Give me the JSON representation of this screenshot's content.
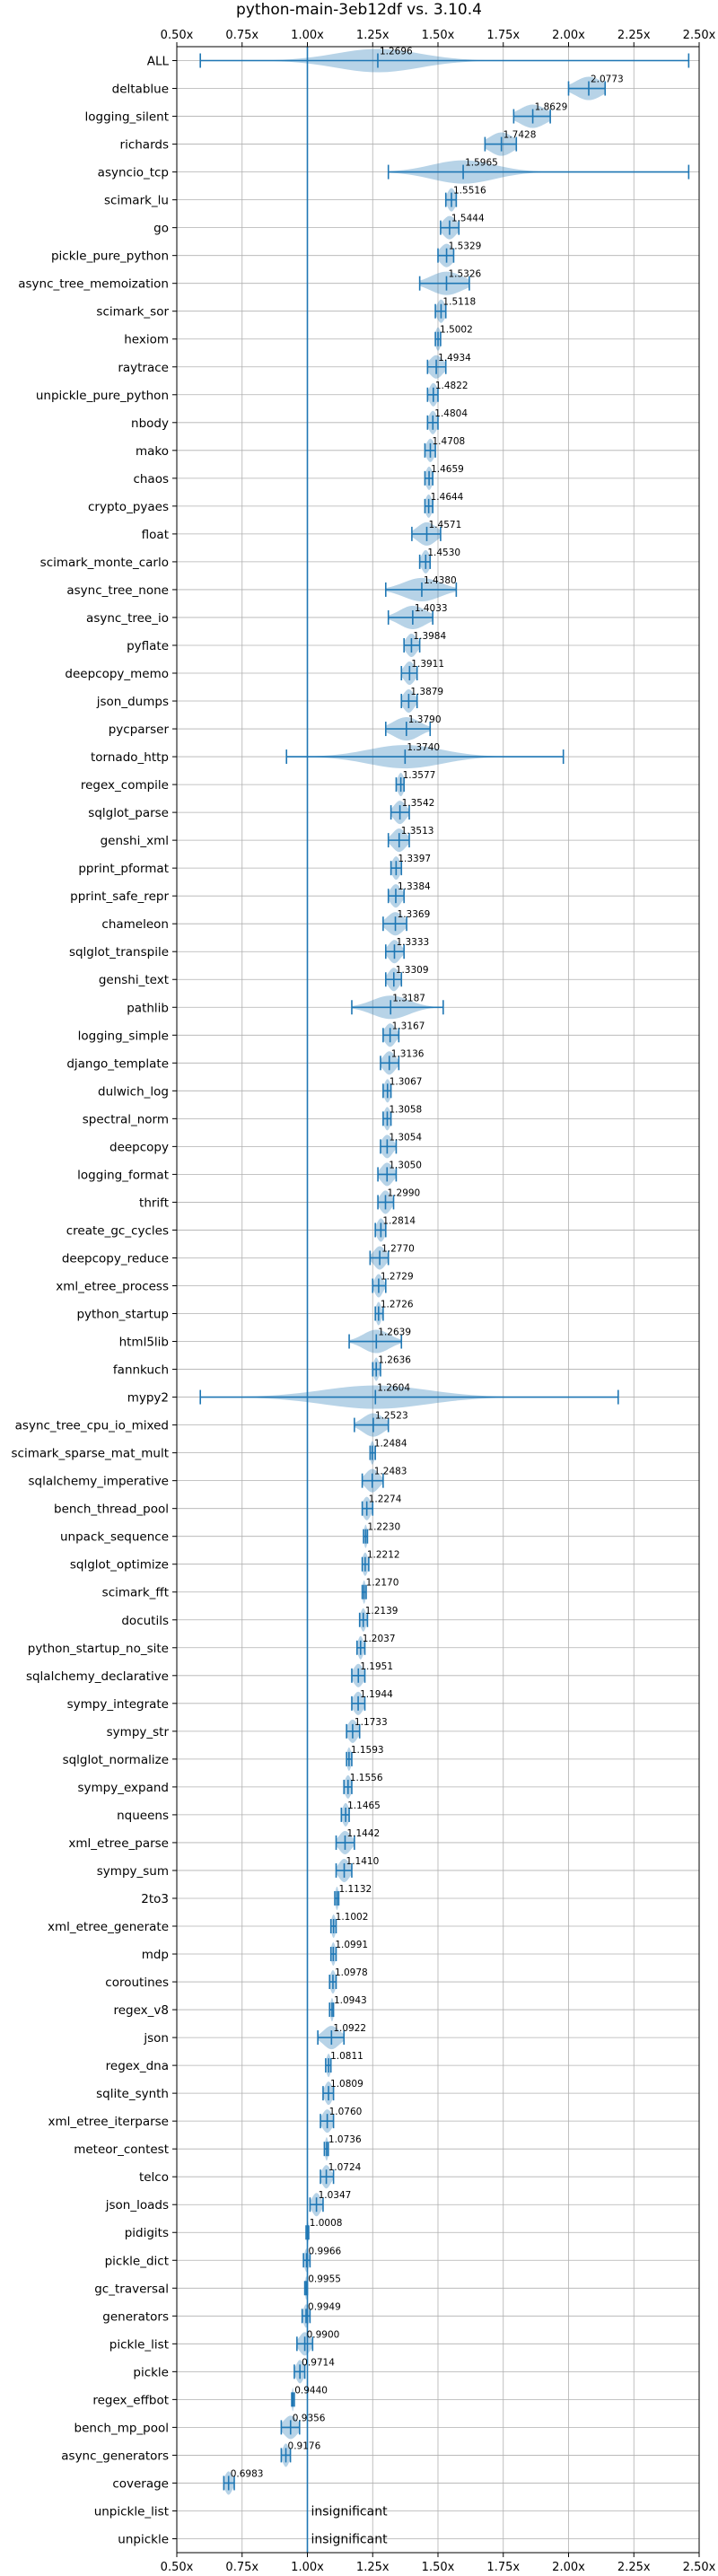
{
  "chart_data": {
    "type": "violin",
    "title": "python-main-3eb12df vs. 3.10.4",
    "xlim": [
      0.5,
      2.5
    ],
    "xticks": [
      0.5,
      0.75,
      1.0,
      1.25,
      1.5,
      1.75,
      2.0,
      2.25,
      2.5
    ],
    "xtick_labels": [
      "0.50x",
      "0.75x",
      "1.00x",
      "1.25x",
      "1.50x",
      "1.75x",
      "2.00x",
      "2.25x",
      "2.50x"
    ],
    "tick_position": "top-and-bottom",
    "grid": true,
    "reference_line": 1.0,
    "colors": {
      "series": "#1f77b4",
      "grid": "#b0b0b0"
    },
    "insignificant_label": "insignificant",
    "benchmarks": [
      {
        "name": "ALL",
        "value": 1.2696,
        "value_label": "1.2696",
        "min": 0.59,
        "max": 2.46,
        "spread": 0.16
      },
      {
        "name": "deltablue",
        "value": 2.0773,
        "value_label": "2.0773",
        "min": 2.0,
        "max": 2.14,
        "spread": 0.05
      },
      {
        "name": "logging_silent",
        "value": 1.8629,
        "value_label": "1.8629",
        "min": 1.79,
        "max": 1.93,
        "spread": 0.05
      },
      {
        "name": "richards",
        "value": 1.7428,
        "value_label": "1.7428",
        "min": 1.68,
        "max": 1.8,
        "spread": 0.045
      },
      {
        "name": "asyncio_tcp",
        "value": 1.5965,
        "value_label": "1.5965",
        "min": 1.31,
        "max": 2.46,
        "spread": 0.12
      },
      {
        "name": "scimark_lu",
        "value": 1.5516,
        "value_label": "1.5516",
        "min": 1.53,
        "max": 1.57,
        "spread": 0.015
      },
      {
        "name": "go",
        "value": 1.5444,
        "value_label": "1.5444",
        "min": 1.51,
        "max": 1.58,
        "spread": 0.025
      },
      {
        "name": "pickle_pure_python",
        "value": 1.5329,
        "value_label": "1.5329",
        "min": 1.5,
        "max": 1.56,
        "spread": 0.025
      },
      {
        "name": "async_tree_memoization",
        "value": 1.5326,
        "value_label": "1.5326",
        "min": 1.43,
        "max": 1.62,
        "spread": 0.06
      },
      {
        "name": "scimark_sor",
        "value": 1.5118,
        "value_label": "1.5118",
        "min": 1.49,
        "max": 1.53,
        "spread": 0.015
      },
      {
        "name": "hexiom",
        "value": 1.5002,
        "value_label": "1.5002",
        "min": 1.49,
        "max": 1.51,
        "spread": 0.01
      },
      {
        "name": "raytrace",
        "value": 1.4934,
        "value_label": "1.4934",
        "min": 1.46,
        "max": 1.53,
        "spread": 0.025
      },
      {
        "name": "unpickle_pure_python",
        "value": 1.4822,
        "value_label": "1.4822",
        "min": 1.46,
        "max": 1.5,
        "spread": 0.015
      },
      {
        "name": "nbody",
        "value": 1.4804,
        "value_label": "1.4804",
        "min": 1.46,
        "max": 1.5,
        "spread": 0.015
      },
      {
        "name": "mako",
        "value": 1.4708,
        "value_label": "1.4708",
        "min": 1.45,
        "max": 1.49,
        "spread": 0.015
      },
      {
        "name": "chaos",
        "value": 1.4659,
        "value_label": "1.4659",
        "min": 1.45,
        "max": 1.48,
        "spread": 0.012
      },
      {
        "name": "crypto_pyaes",
        "value": 1.4644,
        "value_label": "1.4644",
        "min": 1.45,
        "max": 1.48,
        "spread": 0.012
      },
      {
        "name": "float",
        "value": 1.4571,
        "value_label": "1.4571",
        "min": 1.4,
        "max": 1.51,
        "spread": 0.035
      },
      {
        "name": "scimark_monte_carlo",
        "value": 1.453,
        "value_label": "1.4530",
        "min": 1.43,
        "max": 1.47,
        "spread": 0.015
      },
      {
        "name": "async_tree_none",
        "value": 1.438,
        "value_label": "1.4380",
        "min": 1.3,
        "max": 1.57,
        "spread": 0.07
      },
      {
        "name": "async_tree_io",
        "value": 1.4033,
        "value_label": "1.4033",
        "min": 1.31,
        "max": 1.48,
        "spread": 0.05
      },
      {
        "name": "pyflate",
        "value": 1.3984,
        "value_label": "1.3984",
        "min": 1.37,
        "max": 1.43,
        "spread": 0.02
      },
      {
        "name": "deepcopy_memo",
        "value": 1.3911,
        "value_label": "1.3911",
        "min": 1.36,
        "max": 1.42,
        "spread": 0.02
      },
      {
        "name": "json_dumps",
        "value": 1.3879,
        "value_label": "1.3879",
        "min": 1.36,
        "max": 1.42,
        "spread": 0.02
      },
      {
        "name": "pycparser",
        "value": 1.379,
        "value_label": "1.3790",
        "min": 1.3,
        "max": 1.47,
        "spread": 0.05
      },
      {
        "name": "tornado_http",
        "value": 1.374,
        "value_label": "1.3740",
        "min": 0.92,
        "max": 1.98,
        "spread": 0.14
      },
      {
        "name": "regex_compile",
        "value": 1.3577,
        "value_label": "1.3577",
        "min": 1.34,
        "max": 1.37,
        "spread": 0.012
      },
      {
        "name": "sqlglot_parse",
        "value": 1.3542,
        "value_label": "1.3542",
        "min": 1.32,
        "max": 1.39,
        "spread": 0.022
      },
      {
        "name": "genshi_xml",
        "value": 1.3513,
        "value_label": "1.3513",
        "min": 1.31,
        "max": 1.39,
        "spread": 0.025
      },
      {
        "name": "pprint_pformat",
        "value": 1.3397,
        "value_label": "1.3397",
        "min": 1.32,
        "max": 1.36,
        "spread": 0.015
      },
      {
        "name": "pprint_safe_repr",
        "value": 1.3384,
        "value_label": "1.3384",
        "min": 1.31,
        "max": 1.37,
        "spread": 0.02
      },
      {
        "name": "chameleon",
        "value": 1.3369,
        "value_label": "1.3369",
        "min": 1.29,
        "max": 1.38,
        "spread": 0.03
      },
      {
        "name": "sqlglot_transpile",
        "value": 1.3333,
        "value_label": "1.3333",
        "min": 1.3,
        "max": 1.37,
        "spread": 0.022
      },
      {
        "name": "genshi_text",
        "value": 1.3309,
        "value_label": "1.3309",
        "min": 1.3,
        "max": 1.36,
        "spread": 0.02
      },
      {
        "name": "pathlib",
        "value": 1.3187,
        "value_label": "1.3187",
        "min": 1.17,
        "max": 1.52,
        "spread": 0.07
      },
      {
        "name": "logging_simple",
        "value": 1.3167,
        "value_label": "1.3167",
        "min": 1.29,
        "max": 1.35,
        "spread": 0.02
      },
      {
        "name": "django_template",
        "value": 1.3136,
        "value_label": "1.3136",
        "min": 1.28,
        "max": 1.35,
        "spread": 0.022
      },
      {
        "name": "dulwich_log",
        "value": 1.3067,
        "value_label": "1.3067",
        "min": 1.29,
        "max": 1.32,
        "spread": 0.012
      },
      {
        "name": "spectral_norm",
        "value": 1.3058,
        "value_label": "1.3058",
        "min": 1.29,
        "max": 1.32,
        "spread": 0.012
      },
      {
        "name": "deepcopy",
        "value": 1.3054,
        "value_label": "1.3054",
        "min": 1.28,
        "max": 1.34,
        "spread": 0.02
      },
      {
        "name": "logging_format",
        "value": 1.305,
        "value_label": "1.3050",
        "min": 1.27,
        "max": 1.34,
        "spread": 0.022
      },
      {
        "name": "thrift",
        "value": 1.299,
        "value_label": "1.2990",
        "min": 1.27,
        "max": 1.33,
        "spread": 0.02
      },
      {
        "name": "create_gc_cycles",
        "value": 1.2814,
        "value_label": "1.2814",
        "min": 1.26,
        "max": 1.3,
        "spread": 0.015
      },
      {
        "name": "deepcopy_reduce",
        "value": 1.277,
        "value_label": "1.2770",
        "min": 1.24,
        "max": 1.31,
        "spread": 0.022
      },
      {
        "name": "xml_etree_process",
        "value": 1.2729,
        "value_label": "1.2729",
        "min": 1.25,
        "max": 1.3,
        "spread": 0.015
      },
      {
        "name": "python_startup",
        "value": 1.2726,
        "value_label": "1.2726",
        "min": 1.26,
        "max": 1.29,
        "spread": 0.01
      },
      {
        "name": "html5lib",
        "value": 1.2639,
        "value_label": "1.2639",
        "min": 1.16,
        "max": 1.36,
        "spread": 0.05
      },
      {
        "name": "fannkuch",
        "value": 1.2636,
        "value_label": "1.2636",
        "min": 1.25,
        "max": 1.28,
        "spread": 0.01
      },
      {
        "name": "mypy2",
        "value": 1.2604,
        "value_label": "1.2604",
        "min": 0.59,
        "max": 2.19,
        "spread": 0.2
      },
      {
        "name": "async_tree_cpu_io_mixed",
        "value": 1.2523,
        "value_label": "1.2523",
        "min": 1.18,
        "max": 1.31,
        "spread": 0.04
      },
      {
        "name": "scimark_sparse_mat_mult",
        "value": 1.2484,
        "value_label": "1.2484",
        "min": 1.24,
        "max": 1.26,
        "spread": 0.008
      },
      {
        "name": "sqlalchemy_imperative",
        "value": 1.2483,
        "value_label": "1.2483",
        "min": 1.21,
        "max": 1.29,
        "spread": 0.025
      },
      {
        "name": "bench_thread_pool",
        "value": 1.2274,
        "value_label": "1.2274",
        "min": 1.21,
        "max": 1.25,
        "spread": 0.015
      },
      {
        "name": "unpack_sequence",
        "value": 1.223,
        "value_label": "1.2230",
        "min": 1.215,
        "max": 1.23,
        "spread": 0.006
      },
      {
        "name": "sqlglot_optimize",
        "value": 1.2212,
        "value_label": "1.2212",
        "min": 1.21,
        "max": 1.235,
        "spread": 0.01
      },
      {
        "name": "scimark_fft",
        "value": 1.217,
        "value_label": "1.2170",
        "min": 1.21,
        "max": 1.225,
        "spread": 0.006
      },
      {
        "name": "docutils",
        "value": 1.2139,
        "value_label": "1.2139",
        "min": 1.2,
        "max": 1.23,
        "spread": 0.01
      },
      {
        "name": "python_startup_no_site",
        "value": 1.2037,
        "value_label": "1.2037",
        "min": 1.19,
        "max": 1.22,
        "spread": 0.01
      },
      {
        "name": "sqlalchemy_declarative",
        "value": 1.1951,
        "value_label": "1.1951",
        "min": 1.17,
        "max": 1.22,
        "spread": 0.018
      },
      {
        "name": "sympy_integrate",
        "value": 1.1944,
        "value_label": "1.1944",
        "min": 1.17,
        "max": 1.22,
        "spread": 0.018
      },
      {
        "name": "sympy_str",
        "value": 1.1733,
        "value_label": "1.1733",
        "min": 1.15,
        "max": 1.2,
        "spread": 0.018
      },
      {
        "name": "sqlglot_normalize",
        "value": 1.1593,
        "value_label": "1.1593",
        "min": 1.15,
        "max": 1.17,
        "spread": 0.008
      },
      {
        "name": "sympy_expand",
        "value": 1.1556,
        "value_label": "1.1556",
        "min": 1.14,
        "max": 1.17,
        "spread": 0.012
      },
      {
        "name": "nqueens",
        "value": 1.1465,
        "value_label": "1.1465",
        "min": 1.13,
        "max": 1.16,
        "spread": 0.012
      },
      {
        "name": "xml_etree_parse",
        "value": 1.1442,
        "value_label": "1.1442",
        "min": 1.11,
        "max": 1.18,
        "spread": 0.022
      },
      {
        "name": "sympy_sum",
        "value": 1.141,
        "value_label": "1.1410",
        "min": 1.11,
        "max": 1.17,
        "spread": 0.02
      },
      {
        "name": "2to3",
        "value": 1.1132,
        "value_label": "1.1132",
        "min": 1.105,
        "max": 1.12,
        "spread": 0.006
      },
      {
        "name": "xml_etree_generate",
        "value": 1.1002,
        "value_label": "1.1002",
        "min": 1.09,
        "max": 1.11,
        "spread": 0.008
      },
      {
        "name": "mdp",
        "value": 1.0991,
        "value_label": "1.0991",
        "min": 1.09,
        "max": 1.11,
        "spread": 0.008
      },
      {
        "name": "coroutines",
        "value": 1.0978,
        "value_label": "1.0978",
        "min": 1.085,
        "max": 1.11,
        "spread": 0.01
      },
      {
        "name": "regex_v8",
        "value": 1.0943,
        "value_label": "1.0943",
        "min": 1.085,
        "max": 1.1,
        "spread": 0.006
      },
      {
        "name": "json",
        "value": 1.0922,
        "value_label": "1.0922",
        "min": 1.04,
        "max": 1.14,
        "spread": 0.03
      },
      {
        "name": "regex_dna",
        "value": 1.0811,
        "value_label": "1.0811",
        "min": 1.07,
        "max": 1.09,
        "spread": 0.008
      },
      {
        "name": "sqlite_synth",
        "value": 1.0809,
        "value_label": "1.0809",
        "min": 1.06,
        "max": 1.1,
        "spread": 0.014
      },
      {
        "name": "xml_etree_iterparse",
        "value": 1.076,
        "value_label": "1.0760",
        "min": 1.05,
        "max": 1.1,
        "spread": 0.018
      },
      {
        "name": "meteor_contest",
        "value": 1.0736,
        "value_label": "1.0736",
        "min": 1.065,
        "max": 1.08,
        "spread": 0.006
      },
      {
        "name": "telco",
        "value": 1.0724,
        "value_label": "1.0724",
        "min": 1.05,
        "max": 1.1,
        "spread": 0.016
      },
      {
        "name": "json_loads",
        "value": 1.0347,
        "value_label": "1.0347",
        "min": 1.01,
        "max": 1.06,
        "spread": 0.016
      },
      {
        "name": "pidigits",
        "value": 1.0008,
        "value_label": "1.0008",
        "min": 0.995,
        "max": 1.005,
        "spread": 0.004
      },
      {
        "name": "pickle_dict",
        "value": 0.9966,
        "value_label": "0.9966",
        "min": 0.985,
        "max": 1.01,
        "spread": 0.008
      },
      {
        "name": "gc_traversal",
        "value": 0.9955,
        "value_label": "0.9955",
        "min": 0.99,
        "max": 1.0,
        "spread": 0.004
      },
      {
        "name": "generators",
        "value": 0.9949,
        "value_label": "0.9949",
        "min": 0.98,
        "max": 1.01,
        "spread": 0.01
      },
      {
        "name": "pickle_list",
        "value": 0.99,
        "value_label": "0.9900",
        "min": 0.96,
        "max": 1.02,
        "spread": 0.02
      },
      {
        "name": "pickle",
        "value": 0.9714,
        "value_label": "0.9714",
        "min": 0.95,
        "max": 0.99,
        "spread": 0.014
      },
      {
        "name": "regex_effbot",
        "value": 0.944,
        "value_label": "0.9440",
        "min": 0.94,
        "max": 0.95,
        "spread": 0.004
      },
      {
        "name": "bench_mp_pool",
        "value": 0.9356,
        "value_label": "0.9356",
        "min": 0.9,
        "max": 0.97,
        "spread": 0.025
      },
      {
        "name": "async_generators",
        "value": 0.9176,
        "value_label": "0.9176",
        "min": 0.9,
        "max": 0.935,
        "spread": 0.012
      },
      {
        "name": "coverage",
        "value": 0.6983,
        "value_label": "0.6983",
        "min": 0.68,
        "max": 0.72,
        "spread": 0.014
      },
      {
        "name": "unpickle_list",
        "value": null,
        "value_label": "",
        "insignificant": true
      },
      {
        "name": "unpickle",
        "value": null,
        "value_label": "",
        "insignificant": true
      }
    ]
  }
}
